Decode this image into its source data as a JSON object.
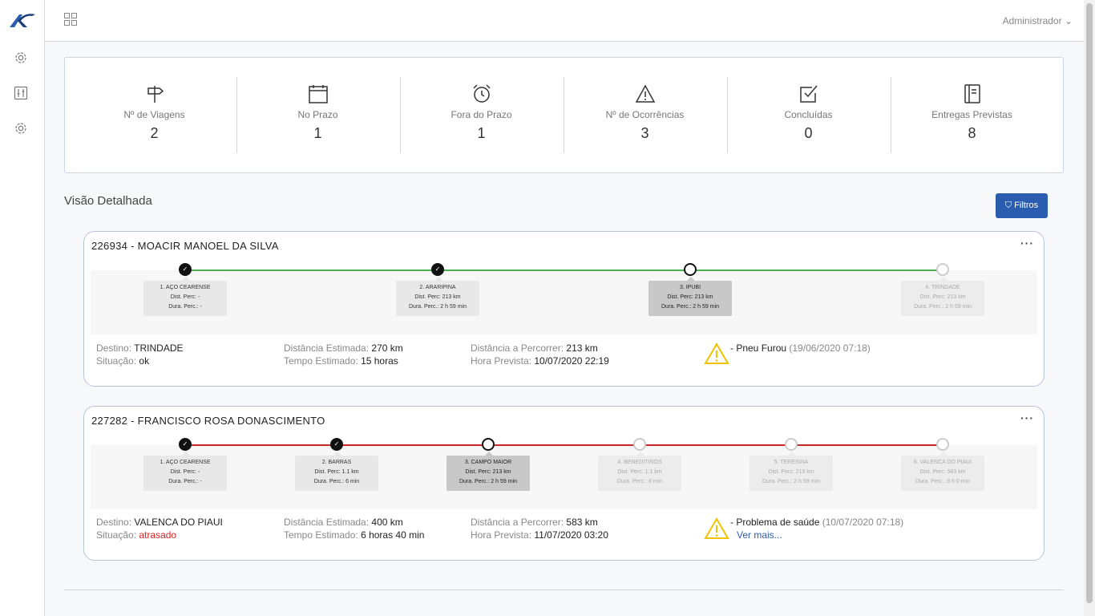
{
  "header": {
    "user_menu": "Administrador"
  },
  "stats": [
    {
      "icon": "signpost-icon",
      "label": "Nº de Viagens",
      "value": "2"
    },
    {
      "icon": "calendar-icon",
      "label": "No Prazo",
      "value": "1"
    },
    {
      "icon": "alarm-clock-icon",
      "label": "Fora do Prazo",
      "value": "1"
    },
    {
      "icon": "warning-icon",
      "label": "Nº de Ocorrências",
      "value": "3"
    },
    {
      "icon": "checkbox-icon",
      "label": "Concluídas",
      "value": "0"
    },
    {
      "icon": "notebook-icon",
      "label": "Entregas Previstas",
      "value": "8"
    }
  ],
  "section": {
    "title": "Visão Detalhada",
    "filter_label": "Filtros"
  },
  "trips": [
    {
      "title": "226934 - MOACIR MANOEL DA SILVA",
      "line_color": "#4caf50",
      "stops": [
        {
          "name": "1. AÇO CEARENSE",
          "dist": "Dist. Perc: -",
          "dur": "Dura. Perc.: -",
          "state": "done"
        },
        {
          "name": "2. ARARIPINA",
          "dist": "Dist. Perc: 213 km",
          "dur": "Dura. Perc.: 2 h 59 min",
          "state": "done"
        },
        {
          "name": "3. IPUBI",
          "dist": "Dist. Perc: 213 km",
          "dur": "Dura. Perc.: 2 h 59 min",
          "state": "current"
        },
        {
          "name": "4. TRINDADE",
          "dist": "Dist. Perc: 213 km",
          "dur": "Dura. Perc.: 2 h 59 min",
          "state": "future"
        }
      ],
      "destino_label": "Destino:",
      "destino": "TRINDADE",
      "situacao_label": "Situação:",
      "situacao": "ok",
      "dist_est_label": "Distância Estimada:",
      "dist_est": "270 km",
      "tempo_est_label": "Tempo Estimado:",
      "tempo_est": "15 horas",
      "dist_perc_label": "Distância a Percorrer:",
      "dist_perc": "213 km",
      "hora_prev_label": "Hora Prevista:",
      "hora_prev": "10/07/2020 22:19",
      "ocorrencia": "- Pneu Furou",
      "ocorrencia_data": "(19/06/2020 07:18)",
      "ver_mais": ""
    },
    {
      "title": "227282 - FRANCISCO ROSA DONASCIMENTO",
      "line_color": "#c62828",
      "stops": [
        {
          "name": "1. AÇO CEARENSE",
          "dist": "Dist. Perc: -",
          "dur": "Dura. Perc.: -",
          "state": "done"
        },
        {
          "name": "2. BARRAS",
          "dist": "Dist. Perc: 1.1 km",
          "dur": "Dura. Perc.: 6 min",
          "state": "done"
        },
        {
          "name": "3. CAMPO MAIOR",
          "dist": "Dist. Perc: 213 km",
          "dur": "Dura. Perc.: 2 h 59 min",
          "state": "current"
        },
        {
          "name": "4. BENEDITINOS",
          "dist": "Dist. Perc: 1.1 km",
          "dur": "Dura. Perc.: 6 min",
          "state": "future"
        },
        {
          "name": "5. TERESINA",
          "dist": "Dist. Perc: 213 km",
          "dur": "Dura. Perc.: 2 h 59 min",
          "state": "future"
        },
        {
          "name": "6. VALENCA DO PIAUI",
          "dist": "Dist. Perc: 583 km",
          "dur": "Dura. Perc.: 8 h 0 min",
          "state": "future"
        }
      ],
      "destino_label": "Destino:",
      "destino": "VALENCA DO PIAUI",
      "situacao_label": "Situação:",
      "situacao": "atrasado",
      "dist_est_label": "Distância Estimada:",
      "dist_est": "400 km",
      "tempo_est_label": "Tempo Estimado:",
      "tempo_est": "6 horas 40 min",
      "dist_perc_label": "Distância a Percorrer:",
      "dist_perc": "583 km",
      "hora_prev_label": "Hora Prevista:",
      "hora_prev": "11/07/2020 03:20",
      "ocorrencia": "- Problema de saúde",
      "ocorrencia_data": "(10/07/2020 07:18)",
      "ver_mais": "Ver mais..."
    }
  ],
  "colors": {
    "accent": "#2a5db0",
    "late": "#d22222",
    "warning": "#f2c200"
  }
}
